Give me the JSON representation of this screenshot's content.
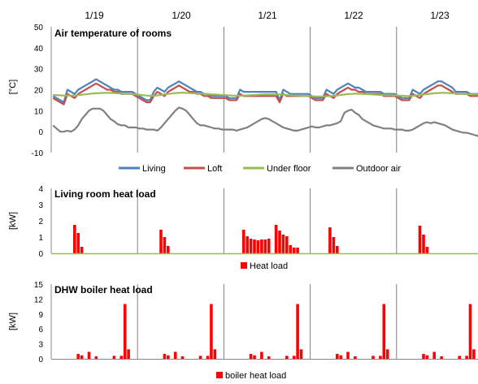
{
  "chart_data": [
    {
      "type": "line",
      "title": "Air temperature of rooms",
      "ylabel": "[°C]",
      "xlabel": "",
      "x_day_labels": [
        "1/19",
        "1/20",
        "1/21",
        "1/22",
        "1/23"
      ],
      "ylim": [
        -10,
        50
      ],
      "yticks": [
        -10,
        0,
        10,
        20,
        30,
        40,
        50
      ],
      "grid": false,
      "legend_position": "bottom",
      "x_unit": "hours from start of 1/19 (hourly)",
      "series": [
        {
          "name": "Living",
          "color": "#4F81BD",
          "values": [
            17,
            16,
            15,
            14,
            20,
            19,
            18,
            20,
            21,
            22,
            23,
            24,
            25,
            24,
            23,
            22,
            21,
            20,
            20,
            19,
            19,
            19,
            19,
            18,
            17,
            16,
            15,
            15,
            19,
            21,
            20,
            19,
            21,
            22,
            23,
            24,
            23,
            22,
            21,
            20,
            19,
            19,
            18,
            18,
            17,
            17,
            17,
            17,
            17,
            16,
            16,
            16,
            20,
            19,
            19,
            19,
            19,
            19,
            19,
            19,
            19,
            19,
            19,
            15,
            20,
            19,
            18,
            18,
            18,
            18,
            18,
            18,
            17,
            16,
            16,
            16,
            20,
            19,
            18,
            20,
            21,
            22,
            23,
            22,
            21,
            21,
            20,
            19,
            19,
            19,
            19,
            19,
            18,
            18,
            18,
            18,
            17,
            16,
            16,
            16,
            20,
            19,
            18,
            20,
            21,
            22,
            23,
            24,
            24,
            23,
            22,
            21,
            19,
            19,
            19,
            19,
            18,
            18,
            18,
            18
          ]
        },
        {
          "name": "Loft",
          "color": "#C0504D",
          "values": [
            16,
            15,
            14,
            13,
            18,
            17,
            16,
            18,
            19,
            20,
            21,
            22,
            23,
            22,
            21,
            20,
            20,
            19,
            19,
            18,
            18,
            18,
            18,
            17,
            16,
            15,
            14,
            14,
            17,
            19,
            18,
            17,
            19,
            20,
            21,
            22,
            21,
            20,
            19,
            19,
            18,
            18,
            17,
            17,
            16,
            16,
            16,
            16,
            16,
            15,
            15,
            15,
            18,
            17,
            17,
            17,
            17,
            17,
            17,
            17,
            17,
            17,
            17,
            14,
            18,
            17,
            17,
            17,
            17,
            17,
            17,
            17,
            16,
            15,
            15,
            15,
            18,
            17,
            16,
            18,
            19,
            20,
            21,
            20,
            20,
            19,
            19,
            18,
            18,
            18,
            18,
            18,
            17,
            17,
            17,
            17,
            16,
            15,
            15,
            15,
            18,
            17,
            16,
            18,
            19,
            20,
            21,
            22,
            22,
            21,
            20,
            19,
            18,
            18,
            18,
            18,
            17,
            17,
            17,
            17
          ]
        },
        {
          "name": "Under floor",
          "color": "#9BBB59",
          "values": [
            17.5,
            17.4,
            17.3,
            17.2,
            17.2,
            17.2,
            17.3,
            17.4,
            17.6,
            17.8,
            18.0,
            18.2,
            18.3,
            18.4,
            18.5,
            18.5,
            18.5,
            18.4,
            18.3,
            18.2,
            18.1,
            18.0,
            17.9,
            17.8,
            17.6,
            17.4,
            17.2,
            17.1,
            17.1,
            17.3,
            17.5,
            17.8,
            18.0,
            18.2,
            18.4,
            18.5,
            18.6,
            18.5,
            18.4,
            18.3,
            18.2,
            18.1,
            18.0,
            17.9,
            17.8,
            17.7,
            17.6,
            17.5,
            17.4,
            17.3,
            17.2,
            17.1,
            17.1,
            17.2,
            17.3,
            17.4,
            17.5,
            17.6,
            17.7,
            17.8,
            17.8,
            17.8,
            17.8,
            17.7,
            17.6,
            17.5,
            17.4,
            17.3,
            17.2,
            17.1,
            17.0,
            17.0,
            16.9,
            16.8,
            16.8,
            16.8,
            16.9,
            17.0,
            17.1,
            17.3,
            17.5,
            17.7,
            17.9,
            18.0,
            18.1,
            18.1,
            18.0,
            17.9,
            17.8,
            17.7,
            17.6,
            17.5,
            17.5,
            17.4,
            17.4,
            17.3,
            17.2,
            17.1,
            17.0,
            17.0,
            17.1,
            17.3,
            17.5,
            17.7,
            17.9,
            18.1,
            18.3,
            18.4,
            18.5,
            18.5,
            18.4,
            18.3,
            18.2,
            18.1,
            18.0,
            17.9,
            17.8,
            17.8,
            17.7,
            17.7
          ]
        },
        {
          "name": "Outdoor air",
          "color": "#808080",
          "values": [
            3,
            1.5,
            0,
            0,
            0.5,
            0,
            1,
            3,
            6,
            8,
            10,
            11,
            11,
            11,
            10,
            8,
            6,
            5,
            3.5,
            3,
            3,
            2,
            2,
            2,
            1.5,
            1.5,
            1,
            1,
            1,
            0.5,
            2,
            4,
            6,
            8,
            10,
            11.5,
            11,
            10,
            8,
            6,
            4,
            3,
            3,
            2.5,
            2,
            1.5,
            1.5,
            1,
            1,
            1,
            1,
            0.5,
            1,
            1.5,
            2,
            3,
            4,
            5,
            6,
            6.5,
            6,
            5,
            4,
            3,
            2,
            1.5,
            1,
            0.5,
            0.5,
            1,
            1.5,
            2,
            2.5,
            2,
            2,
            2.5,
            3,
            3,
            3.5,
            4,
            5,
            9,
            10,
            10.5,
            9,
            8,
            6,
            5,
            4,
            3,
            2.5,
            2,
            1.5,
            1.5,
            1.5,
            1,
            1,
            1,
            0.5,
            0.5,
            1,
            2,
            3,
            4,
            4.5,
            4,
            4.5,
            4,
            3.5,
            3,
            2,
            1,
            0.5,
            0,
            -0.5,
            -0.5,
            -1,
            -1.5,
            -2,
            -3
          ]
        }
      ]
    },
    {
      "type": "bar",
      "title": "Living room heat load",
      "ylabel": "[kW]",
      "xlabel": "",
      "ylim": [
        0,
        4
      ],
      "yticks": [
        0,
        1,
        2,
        3,
        4
      ],
      "grid": false,
      "legend_position": "bottom",
      "x_unit": "hour index (0-119)",
      "series": [
        {
          "name": "Heat load",
          "color": "#FF0000",
          "points": [
            [
              6,
              1.75
            ],
            [
              7,
              1.25
            ],
            [
              8,
              0.4
            ],
            [
              30,
              1.45
            ],
            [
              31,
              1.0
            ],
            [
              32,
              0.45
            ],
            [
              53,
              1.45
            ],
            [
              54,
              1.05
            ],
            [
              55,
              0.9
            ],
            [
              56,
              0.85
            ],
            [
              57,
              0.8
            ],
            [
              58,
              0.85
            ],
            [
              59,
              0.85
            ],
            [
              60,
              0.9
            ],
            [
              62,
              1.75
            ],
            [
              63,
              1.4
            ],
            [
              64,
              1.15
            ],
            [
              65,
              1.05
            ],
            [
              66,
              0.5
            ],
            [
              67,
              0.35
            ],
            [
              68,
              0.35
            ],
            [
              77,
              1.6
            ],
            [
              78,
              1.0
            ],
            [
              79,
              0.45
            ],
            [
              102,
              1.7
            ],
            [
              103,
              1.15
            ],
            [
              104,
              0.4
            ]
          ]
        }
      ]
    },
    {
      "type": "bar",
      "title": "DHW boiler heat load",
      "ylabel": "[kW]",
      "xlabel": "",
      "ylim": [
        0,
        15
      ],
      "yticks": [
        0,
        3,
        6,
        9,
        12,
        15
      ],
      "grid": false,
      "legend_position": "bottom",
      "x_unit": "hour index (0-119)",
      "series": [
        {
          "name": "boiler heat load",
          "color": "#FF0000",
          "points": [
            [
              7,
              1.0
            ],
            [
              8,
              0.7
            ],
            [
              10,
              1.4
            ],
            [
              12,
              0.5
            ],
            [
              17,
              0.6
            ],
            [
              19,
              0.6
            ],
            [
              20,
              11.0
            ],
            [
              21,
              1.9
            ],
            [
              31,
              1.0
            ],
            [
              32,
              0.7
            ],
            [
              34,
              1.4
            ],
            [
              36,
              0.5
            ],
            [
              41,
              0.6
            ],
            [
              43,
              0.6
            ],
            [
              44,
              11.0
            ],
            [
              45,
              1.9
            ],
            [
              55,
              1.0
            ],
            [
              56,
              0.7
            ],
            [
              58,
              1.4
            ],
            [
              60,
              0.5
            ],
            [
              65,
              0.6
            ],
            [
              67,
              0.6
            ],
            [
              68,
              11.0
            ],
            [
              69,
              1.9
            ],
            [
              79,
              1.0
            ],
            [
              80,
              0.7
            ],
            [
              82,
              1.4
            ],
            [
              84,
              0.5
            ],
            [
              89,
              0.6
            ],
            [
              91,
              0.6
            ],
            [
              92,
              11.0
            ],
            [
              93,
              1.9
            ],
            [
              103,
              1.0
            ],
            [
              104,
              0.7
            ],
            [
              106,
              1.4
            ],
            [
              108,
              0.5
            ],
            [
              113,
              0.6
            ],
            [
              115,
              0.6
            ],
            [
              116,
              11.0
            ],
            [
              117,
              1.9
            ]
          ]
        }
      ]
    }
  ]
}
